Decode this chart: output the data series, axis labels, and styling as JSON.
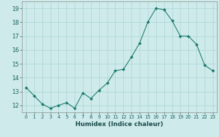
{
  "x": [
    0,
    1,
    2,
    3,
    4,
    5,
    6,
    7,
    8,
    9,
    10,
    11,
    12,
    13,
    14,
    15,
    16,
    17,
    18,
    19,
    20,
    21,
    22,
    23
  ],
  "y": [
    13.3,
    12.7,
    12.1,
    11.8,
    12.0,
    12.2,
    11.8,
    12.9,
    12.5,
    13.1,
    13.6,
    14.5,
    14.6,
    15.5,
    16.5,
    18.0,
    19.0,
    18.9,
    18.1,
    17.0,
    17.0,
    16.4,
    14.9,
    14.5
  ],
  "line_color": "#1a7a6e",
  "marker": "D",
  "marker_size": 2,
  "bg_color": "#ceeaea",
  "grid_color": "#a8d4d4",
  "xlabel": "Humidex (Indice chaleur)",
  "ylim": [
    11.5,
    19.5
  ],
  "xlim": [
    -0.5,
    23.5
  ],
  "yticks": [
    12,
    13,
    14,
    15,
    16,
    17,
    18,
    19
  ],
  "xtick_labels": [
    "0",
    "1",
    "2",
    "3",
    "4",
    "5",
    "6",
    "7",
    "8",
    "9",
    "10",
    "11",
    "12",
    "13",
    "14",
    "15",
    "16",
    "17",
    "18",
    "19",
    "20",
    "21",
    "22",
    "23"
  ]
}
